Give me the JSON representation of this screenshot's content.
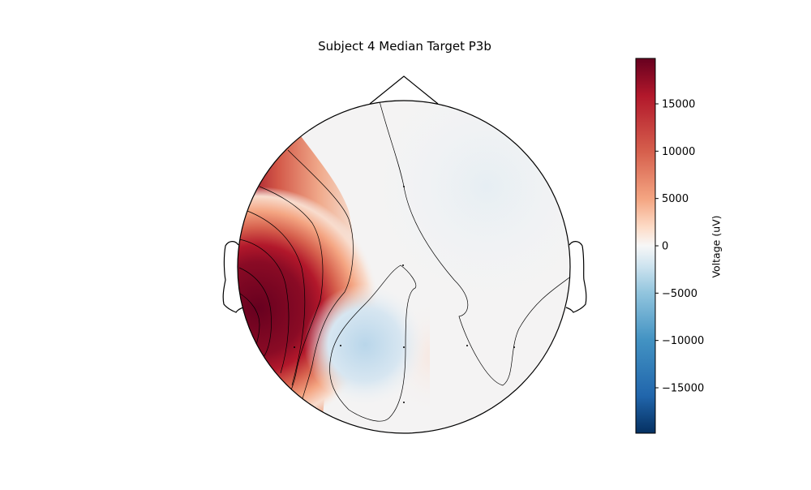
{
  "chart_data": {
    "type": "heatmap",
    "subtype": "scalp-topomap",
    "title": "Subject 4 Median Target P3b",
    "colorbar": {
      "label": "Voltage (uV)",
      "colormap": "RdBu_r",
      "range": [
        -19800,
        19800
      ],
      "ticks": [
        -15000,
        -10000,
        -5000,
        0,
        5000,
        10000,
        15000
      ],
      "tick_labels": [
        "−15000",
        "−10000",
        "−5000",
        "0",
        "5000",
        "10000",
        "15000"
      ]
    },
    "field_features": [
      {
        "region": "left temporal edge",
        "value": 19800
      },
      {
        "region": "left-central strip",
        "value": 8000
      },
      {
        "region": "left-posterior blob",
        "value": -4500
      },
      {
        "region": "right-frontal area",
        "value": -1200
      },
      {
        "region": "right-posterior strip",
        "value": 400
      }
    ],
    "contour_levels": [
      0,
      5000,
      10000,
      15000
    ]
  }
}
